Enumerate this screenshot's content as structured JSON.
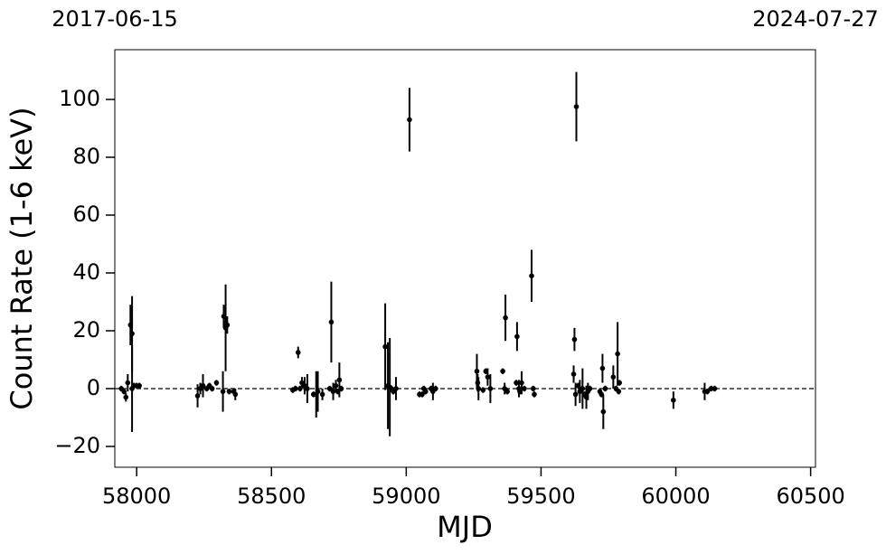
{
  "chart_data": {
    "type": "scatter",
    "xlabel": "MJD",
    "ylabel": "Count Rate (1-6 keV)",
    "x": [
      57943,
      57953,
      57960,
      57967,
      57977,
      57983,
      57983,
      57990,
      58000,
      58010,
      58226,
      58236,
      58246,
      58260,
      58270,
      58280,
      58296,
      58320,
      58323,
      58330,
      58336,
      58343,
      58360,
      58366,
      58579,
      58589,
      58599,
      58606,
      58613,
      58623,
      58633,
      58656,
      58666,
      58672,
      58689,
      58716,
      58722,
      58729,
      58739,
      58746,
      58752,
      58759,
      58922,
      58932,
      58939,
      58945,
      58952,
      58962,
      59012,
      59049,
      59059,
      59065,
      59072,
      59092,
      59099,
      59109,
      59262,
      59265,
      59268,
      59285,
      59295,
      59302,
      59312,
      59358,
      59365,
      59368,
      59375,
      59408,
      59411,
      59418,
      59421,
      59428,
      59438,
      59465,
      59471,
      59475,
      59621,
      59624,
      59628,
      59631,
      59638,
      59644,
      59654,
      59661,
      59668,
      59674,
      59681,
      59718,
      59724,
      59728,
      59731,
      59738,
      59768,
      59778,
      59784,
      59788,
      59791,
      59991,
      60107,
      60117,
      60131,
      60144
    ],
    "values": [
      0,
      -1,
      -3,
      2,
      22,
      19,
      0,
      1,
      1,
      1,
      -2.5,
      0,
      1,
      0,
      1,
      0,
      2,
      -1,
      25,
      21,
      22,
      -1,
      -1,
      -2,
      -0.5,
      0,
      12.5,
      0,
      2,
      1,
      0,
      -2,
      -2,
      -1,
      -2,
      0,
      23,
      -1,
      1,
      -1,
      3,
      0,
      14.5,
      1,
      0.5,
      0,
      -1,
      0,
      93,
      -2,
      -2,
      0,
      -1,
      0,
      -1,
      0,
      6,
      2,
      0,
      -0.5,
      6,
      4,
      0,
      6,
      0,
      24.5,
      -1,
      2,
      18,
      0,
      -1,
      2,
      0,
      39,
      0,
      -2,
      5,
      17,
      -2,
      97.5,
      1,
      -1,
      0,
      -2,
      -3,
      -1,
      0,
      -1,
      -2,
      7,
      -8,
      0,
      4,
      0,
      12,
      -1,
      2,
      -4,
      -1,
      -1,
      0,
      0
    ],
    "errors": [
      1,
      1,
      1.5,
      3,
      7,
      13,
      15,
      1,
      1,
      1,
      4,
      2,
      4,
      1,
      1,
      1,
      1,
      7,
      4,
      15,
      3,
      1,
      1,
      2,
      1,
      1,
      2,
      1,
      2,
      3,
      5,
      1,
      8,
      7,
      2,
      1,
      14,
      3,
      2,
      1,
      6,
      1,
      15,
      15,
      17,
      1,
      1,
      4,
      11,
      1,
      1,
      1,
      1,
      1,
      3,
      1,
      6,
      3,
      4,
      1,
      1,
      3,
      5,
      1,
      2,
      8,
      1,
      1,
      5,
      3,
      1,
      4,
      1,
      9,
      1,
      1,
      3,
      4,
      4,
      12,
      1,
      4,
      7,
      1,
      4,
      3,
      1,
      1,
      1,
      5,
      6,
      1,
      4,
      1,
      11,
      1,
      1,
      3,
      3,
      1,
      1,
      1
    ],
    "color": "#000000",
    "xlim": [
      57919,
      60518
    ],
    "ylim": [
      -27.2,
      117.2
    ],
    "xticks": [
      58000,
      58500,
      59000,
      59500,
      60000,
      60500
    ],
    "yticks": [
      {
        "value": -20,
        "label": "−20"
      },
      0,
      20,
      40,
      60,
      80,
      100
    ],
    "x2ticks": [
      {
        "value": 57919,
        "label": "2017-06-15"
      },
      {
        "value": 60518,
        "label": "2024-07-27"
      }
    ],
    "reference_line": 0
  }
}
